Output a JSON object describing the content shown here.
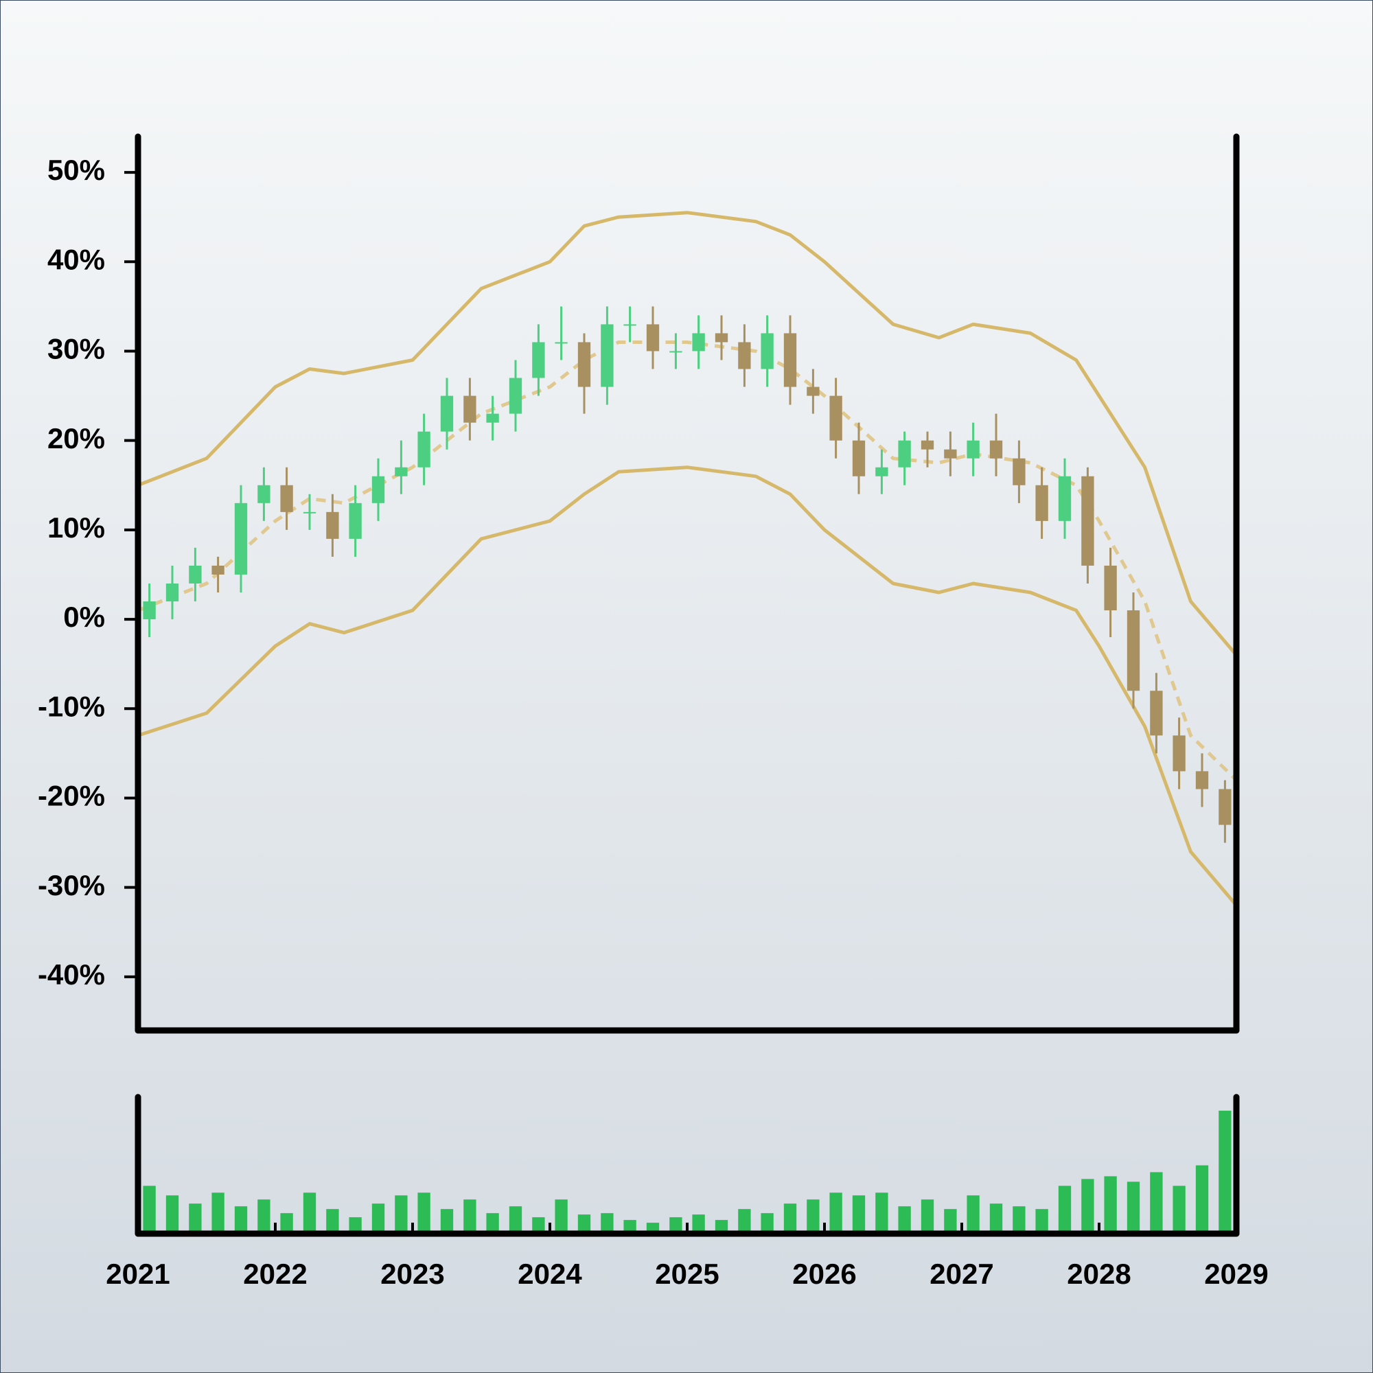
{
  "chart_data": {
    "type": "candlestick",
    "x": [
      2021.083,
      2021.25,
      2021.417,
      2021.583,
      2021.75,
      2021.917,
      2022.083,
      2022.25,
      2022.417,
      2022.583,
      2022.75,
      2022.917,
      2023.083,
      2023.25,
      2023.417,
      2023.583,
      2023.75,
      2023.917,
      2024.083,
      2024.25,
      2024.417,
      2024.583,
      2024.75,
      2024.917,
      2025.083,
      2025.25,
      2025.417,
      2025.583,
      2025.75,
      2025.917,
      2026.083,
      2026.25,
      2026.417,
      2026.583,
      2026.75,
      2026.917,
      2027.083,
      2027.25,
      2027.417,
      2027.583,
      2027.75,
      2027.917,
      2028.083,
      2028.25,
      2028.417,
      2028.583,
      2028.75,
      2028.917
    ],
    "open": [
      0,
      2,
      4,
      6,
      5,
      13,
      15,
      12,
      12,
      9,
      13,
      16,
      17,
      21,
      25,
      22,
      23,
      27,
      31,
      31,
      26,
      33,
      33,
      30,
      30,
      32,
      31,
      28,
      32,
      26,
      25,
      20,
      16,
      17,
      20,
      19,
      18,
      20,
      18,
      15,
      11,
      16,
      6,
      1,
      -8,
      -13,
      -17,
      -19
    ],
    "high": [
      4,
      6,
      8,
      7,
      15,
      17,
      17,
      14,
      14,
      15,
      18,
      20,
      23,
      27,
      27,
      25,
      29,
      33,
      35,
      32,
      35,
      35,
      35,
      32,
      34,
      34,
      33,
      34,
      34,
      28,
      27,
      22,
      19,
      21,
      21,
      21,
      22,
      23,
      20,
      17,
      18,
      17,
      8,
      3,
      -6,
      -11,
      -15,
      -18
    ],
    "low": [
      -2,
      0,
      2,
      3,
      3,
      11,
      10,
      10,
      7,
      7,
      11,
      14,
      15,
      19,
      20,
      20,
      21,
      25,
      29,
      23,
      24,
      31,
      28,
      28,
      28,
      29,
      26,
      26,
      24,
      23,
      18,
      14,
      14,
      15,
      17,
      16,
      16,
      16,
      13,
      9,
      9,
      4,
      -2,
      -10,
      -15,
      -19,
      -21,
      -25
    ],
    "close": [
      2,
      4,
      6,
      5,
      13,
      15,
      12,
      12,
      9,
      13,
      16,
      17,
      21,
      25,
      22,
      23,
      27,
      31,
      31,
      26,
      33,
      33,
      30,
      30,
      32,
      31,
      28,
      32,
      26,
      25,
      20,
      16,
      17,
      20,
      19,
      18,
      20,
      18,
      15,
      11,
      16,
      6,
      1,
      -8,
      -13,
      -17,
      -19,
      -23
    ],
    "up_color": "#4ccf80",
    "down_color": "#a89060",
    "bands": {
      "x": [
        2021.0,
        2021.5,
        2022.0,
        2022.25,
        2022.5,
        2023.0,
        2023.5,
        2024.0,
        2024.25,
        2024.5,
        2025.0,
        2025.5,
        2025.75,
        2026.0,
        2026.5,
        2026.833,
        2027.083,
        2027.5,
        2027.833,
        2028.0,
        2028.333,
        2028.667,
        2029.0
      ],
      "upper": [
        15,
        18,
        26,
        28,
        27.5,
        29,
        37,
        40,
        44,
        45,
        45.5,
        44.5,
        43,
        40,
        33,
        31.5,
        33,
        32,
        29,
        25,
        17,
        2,
        -4
      ],
      "middle": [
        1,
        4,
        11,
        13.5,
        13,
        17,
        23,
        26,
        29,
        31,
        31,
        30,
        28,
        25,
        18,
        17.5,
        18.5,
        17.5,
        15,
        11,
        2,
        -13,
        -18
      ],
      "lower": [
        -13,
        -10.5,
        -3,
        -0.5,
        -1.5,
        1,
        9,
        11,
        14,
        16.5,
        17,
        16,
        14,
        10,
        4,
        3,
        4,
        3,
        1,
        -3,
        -12,
        -26,
        -32
      ],
      "color": "#d6b86a",
      "middle_color": "#e0c88e"
    },
    "volume": {
      "values": [
        35,
        28,
        22,
        30,
        20,
        25,
        15,
        30,
        18,
        12,
        22,
        28,
        30,
        18,
        25,
        15,
        20,
        12,
        25,
        14,
        15,
        10,
        8,
        12,
        14,
        10,
        18,
        15,
        22,
        25,
        30,
        28,
        30,
        20,
        25,
        18,
        28,
        22,
        20,
        18,
        35,
        40,
        42,
        38,
        45,
        35,
        50,
        90
      ],
      "color": "#2dbb55",
      "ylim": [
        0,
        100
      ]
    },
    "xlim": [
      2021,
      2029
    ],
    "xticks": [
      2021,
      2022,
      2023,
      2024,
      2025,
      2026,
      2027,
      2028,
      2029
    ],
    "ylim": [
      -46,
      54
    ],
    "yticks": [
      {
        "value": -40,
        "label": "-40%"
      },
      {
        "value": -30,
        "label": "-30%"
      },
      {
        "value": -20,
        "label": "-20%"
      },
      {
        "value": -10,
        "label": "-10%"
      },
      {
        "value": 0,
        "label": "0%"
      },
      {
        "value": 10,
        "label": "10%"
      },
      {
        "value": 20,
        "label": "20%"
      },
      {
        "value": 30,
        "label": "30%"
      },
      {
        "value": 40,
        "label": "40%"
      },
      {
        "value": 50,
        "label": "50%"
      }
    ]
  }
}
